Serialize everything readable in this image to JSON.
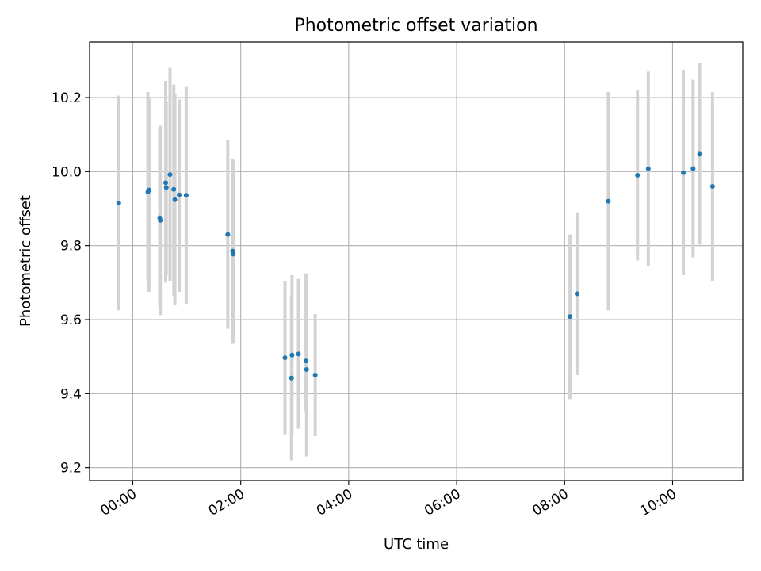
{
  "chart_data": {
    "type": "scatter",
    "title": "Photometric offset variation",
    "xlabel": "UTC time",
    "ylabel": "Photometric offset",
    "x_unit": "hours (UTC)",
    "xlim": [
      -0.8,
      11.3
    ],
    "ylim": [
      9.165,
      10.35
    ],
    "grid": true,
    "legend": "none",
    "x_ticks": [
      {
        "value": 0,
        "label": "00:00"
      },
      {
        "value": 2,
        "label": "02:00"
      },
      {
        "value": 4,
        "label": "04:00"
      },
      {
        "value": 6,
        "label": "06:00"
      },
      {
        "value": 8,
        "label": "08:00"
      },
      {
        "value": 10,
        "label": "10:00"
      }
    ],
    "y_ticks": [
      {
        "value": 9.2,
        "label": "9.2"
      },
      {
        "value": 9.4,
        "label": "9.4"
      },
      {
        "value": 9.6,
        "label": "9.6"
      },
      {
        "value": 9.8,
        "label": "9.8"
      },
      {
        "value": 10.0,
        "label": "10.0"
      },
      {
        "value": 10.2,
        "label": "10.2"
      }
    ],
    "colors": {
      "point": "#1f77b4",
      "errorbar": "#d3d3d3",
      "grid": "#b0b0b0"
    },
    "points": [
      {
        "x": -0.26,
        "y": 9.915,
        "ylow": 9.625,
        "yhigh": 10.205
      },
      {
        "x": 0.28,
        "y": 9.945,
        "ylow": 9.705,
        "yhigh": 10.215
      },
      {
        "x": 0.3,
        "y": 9.95,
        "ylow": 9.675,
        "yhigh": 10.2
      },
      {
        "x": 0.5,
        "y": 9.875,
        "ylow": 9.63,
        "yhigh": 10.12
      },
      {
        "x": 0.51,
        "y": 9.868,
        "ylow": 9.612,
        "yhigh": 10.124
      },
      {
        "x": 0.61,
        "y": 9.97,
        "ylow": 9.7,
        "yhigh": 10.245
      },
      {
        "x": 0.62,
        "y": 9.957,
        "ylow": 9.72,
        "yhigh": 10.19
      },
      {
        "x": 0.69,
        "y": 9.992,
        "ylow": 9.705,
        "yhigh": 10.28
      },
      {
        "x": 0.76,
        "y": 9.952,
        "ylow": 9.665,
        "yhigh": 10.235
      },
      {
        "x": 0.78,
        "y": 9.924,
        "ylow": 9.64,
        "yhigh": 10.21
      },
      {
        "x": 0.86,
        "y": 9.937,
        "ylow": 9.675,
        "yhigh": 10.195
      },
      {
        "x": 0.99,
        "y": 9.936,
        "ylow": 9.643,
        "yhigh": 10.229
      },
      {
        "x": 1.76,
        "y": 9.83,
        "ylow": 9.575,
        "yhigh": 10.085
      },
      {
        "x": 1.85,
        "y": 9.785,
        "ylow": 9.535,
        "yhigh": 10.035
      },
      {
        "x": 1.86,
        "y": 9.777,
        "ylow": 9.535,
        "yhigh": 10.03
      },
      {
        "x": 2.82,
        "y": 9.497,
        "ylow": 9.29,
        "yhigh": 9.705
      },
      {
        "x": 2.94,
        "y": 9.442,
        "ylow": 9.22,
        "yhigh": 9.665
      },
      {
        "x": 2.95,
        "y": 9.504,
        "ylow": 9.29,
        "yhigh": 9.72
      },
      {
        "x": 3.07,
        "y": 9.507,
        "ylow": 9.305,
        "yhigh": 9.71
      },
      {
        "x": 3.21,
        "y": 9.488,
        "ylow": 9.35,
        "yhigh": 9.725
      },
      {
        "x": 3.22,
        "y": 9.465,
        "ylow": 9.23,
        "yhigh": 9.7
      },
      {
        "x": 3.38,
        "y": 9.45,
        "ylow": 9.285,
        "yhigh": 9.615
      },
      {
        "x": 8.1,
        "y": 9.608,
        "ylow": 9.385,
        "yhigh": 9.83
      },
      {
        "x": 8.23,
        "y": 9.67,
        "ylow": 9.45,
        "yhigh": 9.89
      },
      {
        "x": 8.81,
        "y": 9.92,
        "ylow": 9.625,
        "yhigh": 10.215
      },
      {
        "x": 9.35,
        "y": 9.99,
        "ylow": 9.76,
        "yhigh": 10.22
      },
      {
        "x": 9.55,
        "y": 10.008,
        "ylow": 9.745,
        "yhigh": 10.27
      },
      {
        "x": 10.2,
        "y": 9.997,
        "ylow": 9.72,
        "yhigh": 10.275
      },
      {
        "x": 10.38,
        "y": 10.008,
        "ylow": 9.768,
        "yhigh": 10.248
      },
      {
        "x": 10.5,
        "y": 10.047,
        "ylow": 9.803,
        "yhigh": 10.292
      },
      {
        "x": 10.74,
        "y": 9.96,
        "ylow": 9.705,
        "yhigh": 10.215
      }
    ]
  }
}
